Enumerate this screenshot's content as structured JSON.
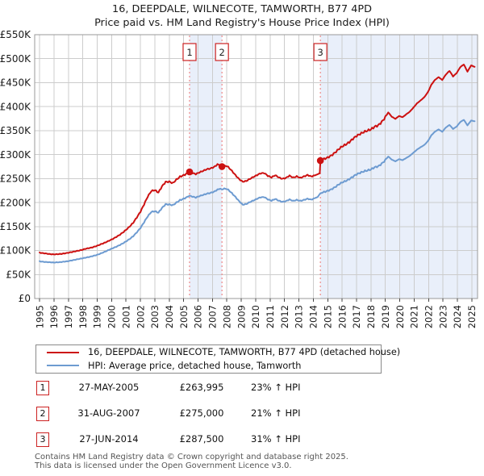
{
  "title": {
    "line1": "16, DEEPDALE, WILNECOTE, TAMWORTH, B77 4PD",
    "line2": "Price paid vs. HM Land Registry's House Price Index (HPI)"
  },
  "chart_data": {
    "type": "line",
    "title": "16, DEEPDALE, WILNECOTE, TAMWORTH, B77 4PD — Price paid vs. HPI",
    "x_axis": {
      "range": [
        1994.66,
        2025.4
      ],
      "ticks": [
        1995,
        1996,
        1997,
        1998,
        1999,
        2000,
        2001,
        2002,
        2003,
        2004,
        2005,
        2006,
        2007,
        2008,
        2009,
        2010,
        2011,
        2012,
        2013,
        2014,
        2015,
        2016,
        2017,
        2018,
        2019,
        2020,
        2021,
        2022,
        2023,
        2024,
        2025
      ]
    },
    "y_axis": {
      "range": [
        0,
        550000
      ],
      "tick_values": [
        0,
        50000,
        100000,
        150000,
        200000,
        250000,
        300000,
        350000,
        400000,
        450000,
        500000,
        550000
      ],
      "tick_labels": [
        "£0",
        "£50K",
        "£100K",
        "£150K",
        "£200K",
        "£250K",
        "£300K",
        "£350K",
        "£400K",
        "£450K",
        "£500K",
        "£550K"
      ]
    },
    "grid": true,
    "legend_position": "bottom",
    "legend": [
      {
        "label": "16, DEEPDALE, WILNECOTE, TAMWORTH, B77 4PD (detached house)",
        "color": "#cc1111"
      },
      {
        "label": "HPI: Average price, detached house, Tamworth",
        "color": "#6d9bd1"
      }
    ],
    "style": {
      "grid_color": "#cccccc",
      "frame_color": "#999999",
      "shade_color": "#e9effa",
      "dashed_color": "#ee8888",
      "marker_box_border": "#cc2222"
    },
    "shaded_spans": [
      [
        2005.41,
        2007.66
      ],
      [
        2014.49,
        2025.4
      ]
    ],
    "markers": [
      {
        "label": "1",
        "x": 2005.41,
        "y": 263995
      },
      {
        "label": "2",
        "x": 2007.66,
        "y": 275000
      },
      {
        "label": "3",
        "x": 2014.49,
        "y": 287500
      }
    ],
    "series": [
      {
        "name": "16, DEEPDALE, WILNECOTE, TAMWORTH, B77 4PD (detached house)",
        "color": "#cc1111",
        "points": [
          [
            1995.0,
            95500
          ],
          [
            1995.25,
            94500
          ],
          [
            1995.5,
            93500
          ],
          [
            1995.75,
            92500
          ],
          [
            1996.0,
            92000
          ],
          [
            1996.25,
            92500
          ],
          [
            1996.5,
            93000
          ],
          [
            1996.75,
            94000
          ],
          [
            1997.0,
            95500
          ],
          [
            1997.25,
            97000
          ],
          [
            1997.5,
            98500
          ],
          [
            1997.75,
            100000
          ],
          [
            1998.0,
            102000
          ],
          [
            1998.25,
            104000
          ],
          [
            1998.5,
            105500
          ],
          [
            1998.75,
            107500
          ],
          [
            1999.0,
            110000
          ],
          [
            1999.25,
            113000
          ],
          [
            1999.5,
            116000
          ],
          [
            1999.75,
            119500
          ],
          [
            2000.0,
            123000
          ],
          [
            2000.25,
            127000
          ],
          [
            2000.5,
            131500
          ],
          [
            2000.75,
            137000
          ],
          [
            2001.0,
            143000
          ],
          [
            2001.25,
            150000
          ],
          [
            2001.5,
            158000
          ],
          [
            2001.75,
            169000
          ],
          [
            2002.0,
            181000
          ],
          [
            2002.25,
            196000
          ],
          [
            2002.5,
            212000
          ],
          [
            2002.75,
            224000
          ],
          [
            2003.0,
            226000
          ],
          [
            2003.25,
            221000
          ],
          [
            2003.5,
            234000
          ],
          [
            2003.75,
            243000
          ],
          [
            2004.0,
            243500
          ],
          [
            2004.25,
            240500
          ],
          [
            2004.5,
            248000
          ],
          [
            2004.75,
            254000
          ],
          [
            2005.0,
            257000
          ],
          [
            2005.25,
            261000
          ],
          [
            2005.41,
            263995
          ],
          [
            2005.6,
            261500
          ],
          [
            2005.85,
            259500
          ],
          [
            2006.1,
            263000
          ],
          [
            2006.35,
            266000
          ],
          [
            2006.6,
            269500
          ],
          [
            2006.85,
            271000
          ],
          [
            2007.1,
            274000
          ],
          [
            2007.35,
            279500
          ],
          [
            2007.55,
            277500
          ],
          [
            2007.66,
            275000
          ],
          [
            2007.9,
            277500
          ],
          [
            2008.1,
            274000
          ],
          [
            2008.35,
            266000
          ],
          [
            2008.6,
            257000
          ],
          [
            2008.85,
            249000
          ],
          [
            2009.1,
            243500
          ],
          [
            2009.35,
            245000
          ],
          [
            2009.6,
            249500
          ],
          [
            2009.85,
            253500
          ],
          [
            2010.1,
            257500
          ],
          [
            2010.35,
            261000
          ],
          [
            2010.6,
            261500
          ],
          [
            2010.85,
            255500
          ],
          [
            2011.1,
            252500
          ],
          [
            2011.35,
            257000
          ],
          [
            2011.6,
            252500
          ],
          [
            2011.85,
            249500
          ],
          [
            2012.1,
            251500
          ],
          [
            2012.35,
            256000
          ],
          [
            2012.6,
            252000
          ],
          [
            2012.85,
            254500
          ],
          [
            2013.1,
            251500
          ],
          [
            2013.35,
            254500
          ],
          [
            2013.6,
            257500
          ],
          [
            2013.85,
            254500
          ],
          [
            2014.1,
            256500
          ],
          [
            2014.3,
            259500
          ],
          [
            2014.45,
            261000
          ],
          [
            2014.49,
            287500
          ],
          [
            2014.75,
            291000
          ],
          [
            2015.0,
            294000
          ],
          [
            2015.25,
            298000
          ],
          [
            2015.5,
            304000
          ],
          [
            2015.75,
            311000
          ],
          [
            2016.0,
            317000
          ],
          [
            2016.25,
            321000
          ],
          [
            2016.5,
            326000
          ],
          [
            2016.75,
            333000
          ],
          [
            2017.0,
            339000
          ],
          [
            2017.25,
            343000
          ],
          [
            2017.5,
            347000
          ],
          [
            2017.75,
            350000
          ],
          [
            2018.0,
            352500
          ],
          [
            2018.25,
            358000
          ],
          [
            2018.5,
            361000
          ],
          [
            2018.75,
            368000
          ],
          [
            2019.0,
            378000
          ],
          [
            2019.2,
            388000
          ],
          [
            2019.45,
            379000
          ],
          [
            2019.7,
            374500
          ],
          [
            2019.95,
            380500
          ],
          [
            2020.2,
            378000
          ],
          [
            2020.45,
            384000
          ],
          [
            2020.7,
            389500
          ],
          [
            2020.95,
            398000
          ],
          [
            2021.2,
            407000
          ],
          [
            2021.45,
            413000
          ],
          [
            2021.7,
            419500
          ],
          [
            2021.95,
            430000
          ],
          [
            2022.2,
            446000
          ],
          [
            2022.45,
            456000
          ],
          [
            2022.7,
            461500
          ],
          [
            2022.95,
            455500
          ],
          [
            2023.2,
            467000
          ],
          [
            2023.45,
            474500
          ],
          [
            2023.7,
            463000
          ],
          [
            2023.95,
            470000
          ],
          [
            2024.2,
            482500
          ],
          [
            2024.45,
            488000
          ],
          [
            2024.7,
            473000
          ],
          [
            2024.95,
            486000
          ],
          [
            2025.2,
            483000
          ]
        ]
      },
      {
        "name": "HPI: Average price, detached house, Tamworth",
        "color": "#6d9bd1",
        "points": [
          [
            1995.0,
            77500
          ],
          [
            1995.25,
            76500
          ],
          [
            1995.5,
            76000
          ],
          [
            1995.75,
            75500
          ],
          [
            1996.0,
            75000
          ],
          [
            1996.25,
            75500
          ],
          [
            1996.5,
            76000
          ],
          [
            1996.75,
            77000
          ],
          [
            1997.0,
            78000
          ],
          [
            1997.25,
            79500
          ],
          [
            1997.5,
            81000
          ],
          [
            1997.75,
            82500
          ],
          [
            1998.0,
            84000
          ],
          [
            1998.25,
            85500
          ],
          [
            1998.5,
            87000
          ],
          [
            1998.75,
            89000
          ],
          [
            1999.0,
            91000
          ],
          [
            1999.25,
            94000
          ],
          [
            1999.5,
            97000
          ],
          [
            1999.75,
            100500
          ],
          [
            2000.0,
            104000
          ],
          [
            2000.25,
            107000
          ],
          [
            2000.5,
            110500
          ],
          [
            2000.75,
            114500
          ],
          [
            2001.0,
            119000
          ],
          [
            2001.25,
            124000
          ],
          [
            2001.5,
            130000
          ],
          [
            2001.75,
            138000
          ],
          [
            2002.0,
            147000
          ],
          [
            2002.25,
            159000
          ],
          [
            2002.5,
            171000
          ],
          [
            2002.75,
            180500
          ],
          [
            2003.0,
            182000
          ],
          [
            2003.25,
            179000
          ],
          [
            2003.5,
            189000
          ],
          [
            2003.75,
            196500
          ],
          [
            2004.0,
            196000
          ],
          [
            2004.25,
            194500
          ],
          [
            2004.5,
            200000
          ],
          [
            2004.75,
            205000
          ],
          [
            2005.0,
            208000
          ],
          [
            2005.25,
            211500
          ],
          [
            2005.41,
            214600
          ],
          [
            2005.6,
            212500
          ],
          [
            2005.85,
            210500
          ],
          [
            2006.1,
            213500
          ],
          [
            2006.35,
            216000
          ],
          [
            2006.6,
            218500
          ],
          [
            2006.85,
            220000
          ],
          [
            2007.1,
            222500
          ],
          [
            2007.35,
            227000
          ],
          [
            2007.55,
            228500
          ],
          [
            2007.66,
            227300
          ],
          [
            2007.9,
            229500
          ],
          [
            2008.1,
            226500
          ],
          [
            2008.35,
            219500
          ],
          [
            2008.6,
            211500
          ],
          [
            2008.85,
            203000
          ],
          [
            2009.1,
            195500
          ],
          [
            2009.35,
            197000
          ],
          [
            2009.6,
            201000
          ],
          [
            2009.85,
            204500
          ],
          [
            2010.1,
            208000
          ],
          [
            2010.35,
            211000
          ],
          [
            2010.6,
            211500
          ],
          [
            2010.85,
            206500
          ],
          [
            2011.1,
            204000
          ],
          [
            2011.35,
            207500
          ],
          [
            2011.6,
            204000
          ],
          [
            2011.85,
            201500
          ],
          [
            2012.1,
            203000
          ],
          [
            2012.35,
            206500
          ],
          [
            2012.6,
            203500
          ],
          [
            2012.85,
            205500
          ],
          [
            2013.1,
            203500
          ],
          [
            2013.35,
            205500
          ],
          [
            2013.6,
            208000
          ],
          [
            2013.85,
            206000
          ],
          [
            2014.1,
            209000
          ],
          [
            2014.3,
            212000
          ],
          [
            2014.49,
            219500
          ],
          [
            2014.75,
            222000
          ],
          [
            2015.0,
            224500
          ],
          [
            2015.25,
            227500
          ],
          [
            2015.5,
            232000
          ],
          [
            2015.75,
            237500
          ],
          [
            2016.0,
            242000
          ],
          [
            2016.25,
            245000
          ],
          [
            2016.5,
            249000
          ],
          [
            2016.75,
            254000
          ],
          [
            2017.0,
            259000
          ],
          [
            2017.25,
            262000
          ],
          [
            2017.5,
            265000
          ],
          [
            2017.75,
            267000
          ],
          [
            2018.0,
            269000
          ],
          [
            2018.25,
            273500
          ],
          [
            2018.5,
            275500
          ],
          [
            2018.75,
            281000
          ],
          [
            2019.0,
            288500
          ],
          [
            2019.2,
            296000
          ],
          [
            2019.45,
            289500
          ],
          [
            2019.7,
            286000
          ],
          [
            2019.95,
            290500
          ],
          [
            2020.2,
            288500
          ],
          [
            2020.45,
            293000
          ],
          [
            2020.7,
            297500
          ],
          [
            2020.95,
            304000
          ],
          [
            2021.2,
            310500
          ],
          [
            2021.45,
            315500
          ],
          [
            2021.7,
            320000
          ],
          [
            2021.95,
            328000
          ],
          [
            2022.2,
            340500
          ],
          [
            2022.45,
            348000
          ],
          [
            2022.7,
            352500
          ],
          [
            2022.95,
            347500
          ],
          [
            2023.2,
            356500
          ],
          [
            2023.45,
            362000
          ],
          [
            2023.7,
            353500
          ],
          [
            2023.95,
            358500
          ],
          [
            2024.2,
            368000
          ],
          [
            2024.45,
            372500
          ],
          [
            2024.7,
            361000
          ],
          [
            2024.95,
            371000
          ],
          [
            2025.2,
            369500
          ]
        ]
      }
    ]
  },
  "transactions": [
    {
      "num": "1",
      "date": "27-MAY-2005",
      "price": "£263,995",
      "hpi": "23% ↑ HPI"
    },
    {
      "num": "2",
      "date": "31-AUG-2007",
      "price": "£275,000",
      "hpi": "21% ↑ HPI"
    },
    {
      "num": "3",
      "date": "27-JUN-2014",
      "price": "£287,500",
      "hpi": "31% ↑ HPI"
    }
  ],
  "footer": {
    "line1": "Contains HM Land Registry data © Crown copyright and database right 2025.",
    "line2": "This data is licensed under the Open Government Licence v3.0."
  }
}
